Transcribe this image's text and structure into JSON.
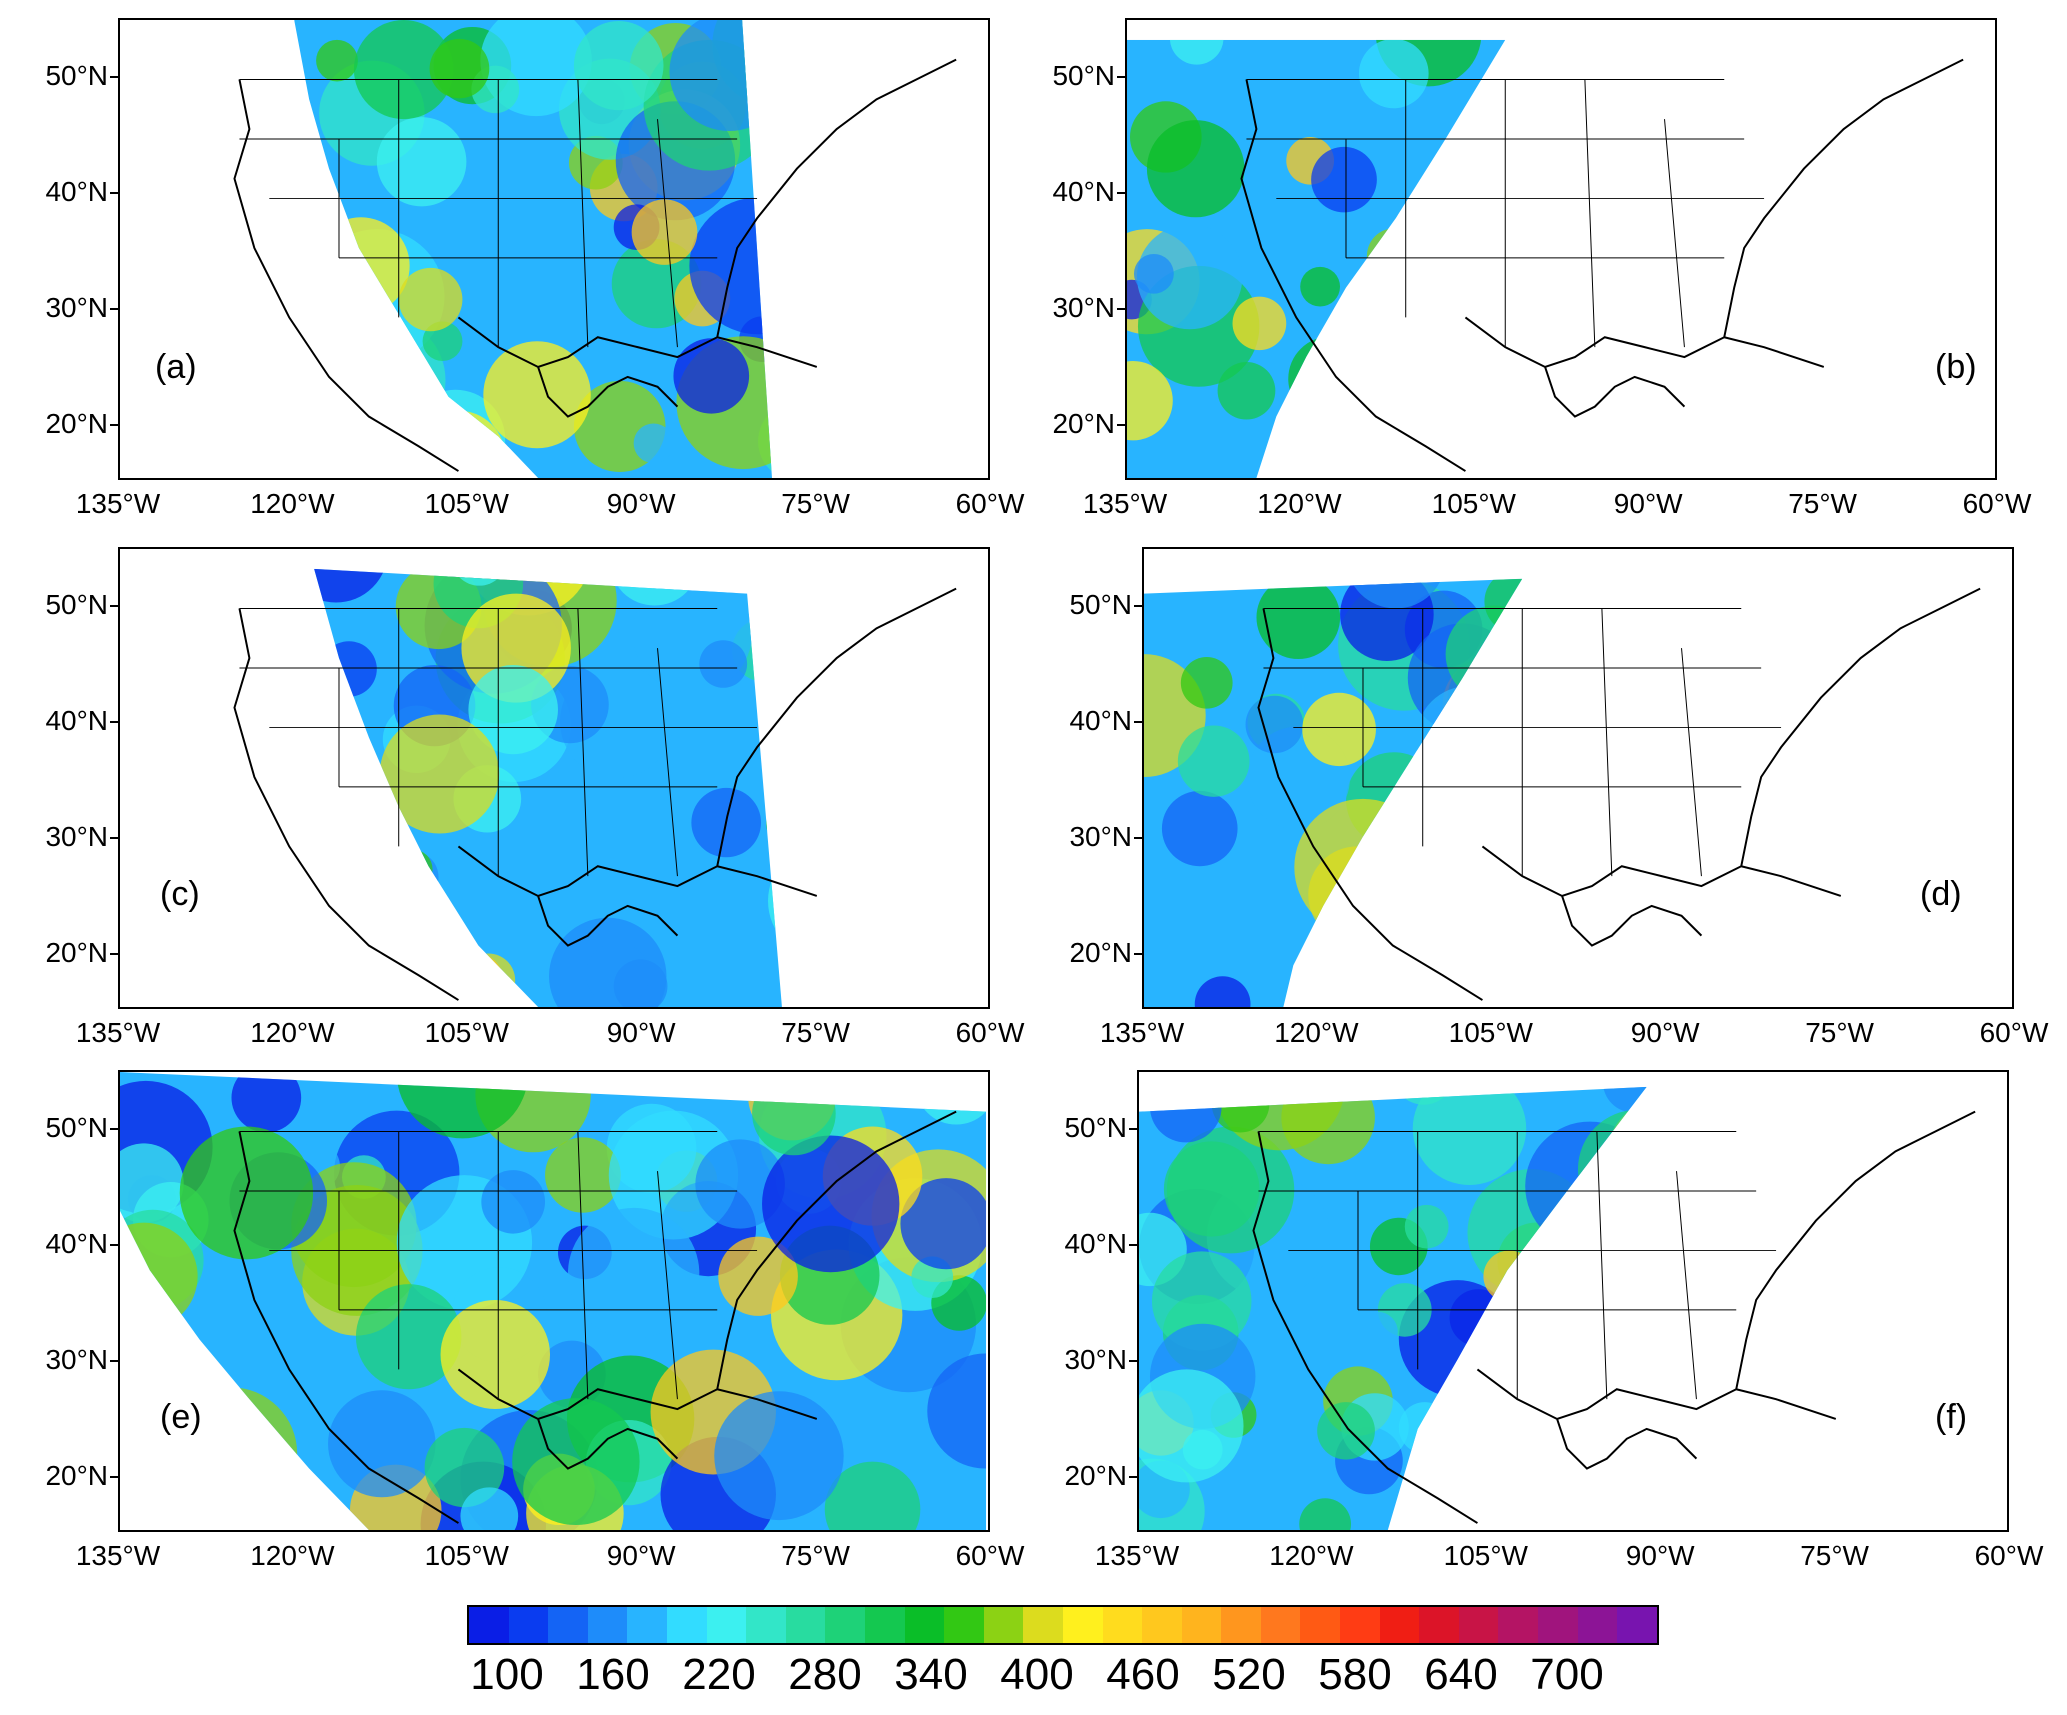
{
  "panels": [
    {
      "id": "a",
      "label": "(a)",
      "lat_labels": [
        "50°N",
        "40°N",
        "30°N",
        "20°N"
      ],
      "lon_labels": [
        "135°W",
        "120°W",
        "105°W",
        "90°W",
        "75°W",
        "60°W"
      ]
    },
    {
      "id": "b",
      "label": "(b)",
      "lat_labels": [
        "50°N",
        "40°N",
        "30°N",
        "20°N"
      ],
      "lon_labels": [
        "135°W",
        "120°W",
        "105°W",
        "90°W",
        "75°W",
        "60°W"
      ]
    },
    {
      "id": "c",
      "label": "(c)",
      "lat_labels": [
        "50°N",
        "40°N",
        "30°N",
        "20°N"
      ],
      "lon_labels": [
        "135°W",
        "120°W",
        "105°W",
        "90°W",
        "75°W",
        "60°W"
      ]
    },
    {
      "id": "d",
      "label": "(d)",
      "lat_labels": [
        "50°N",
        "40°N",
        "30°N",
        "20°N"
      ],
      "lon_labels": [
        "135°W",
        "120°W",
        "105°W",
        "90°W",
        "75°W",
        "60°W"
      ]
    },
    {
      "id": "e",
      "label": "(e)",
      "lat_labels": [
        "50°N",
        "40°N",
        "30°N",
        "20°N"
      ],
      "lon_labels": [
        "135°W",
        "120°W",
        "105°W",
        "90°W",
        "75°W",
        "60°W"
      ]
    },
    {
      "id": "f",
      "label": "(f)",
      "lat_labels": [
        "50°N",
        "40°N",
        "30°N",
        "20°N"
      ],
      "lon_labels": [
        "135°W",
        "120°W",
        "105°W",
        "90°W",
        "75°W",
        "60°W"
      ]
    }
  ],
  "colorbar": {
    "labels": [
      "100",
      "160",
      "220",
      "280",
      "340",
      "400",
      "460",
      "520",
      "580",
      "640",
      "700"
    ],
    "colors": [
      "#0a1ee6",
      "#0a3cf0",
      "#1464f5",
      "#1e8cfa",
      "#28b4ff",
      "#32dcff",
      "#3cf0f0",
      "#32e6c8",
      "#28dca0",
      "#1ed278",
      "#14c850",
      "#0abe28",
      "#32c814",
      "#8cd214",
      "#dcdc1e",
      "#fff01e",
      "#ffdc1e",
      "#ffc81e",
      "#ffb41e",
      "#ff961e",
      "#ff781e",
      "#ff5a14",
      "#ff3c14",
      "#f01e14",
      "#dc1428",
      "#c81446",
      "#b41464",
      "#a0147d",
      "#8c1496",
      "#7814af"
    ]
  },
  "map_extent": {
    "lon_min": -135,
    "lon_max": -60,
    "lat_min": 15,
    "lat_max": 55
  }
}
